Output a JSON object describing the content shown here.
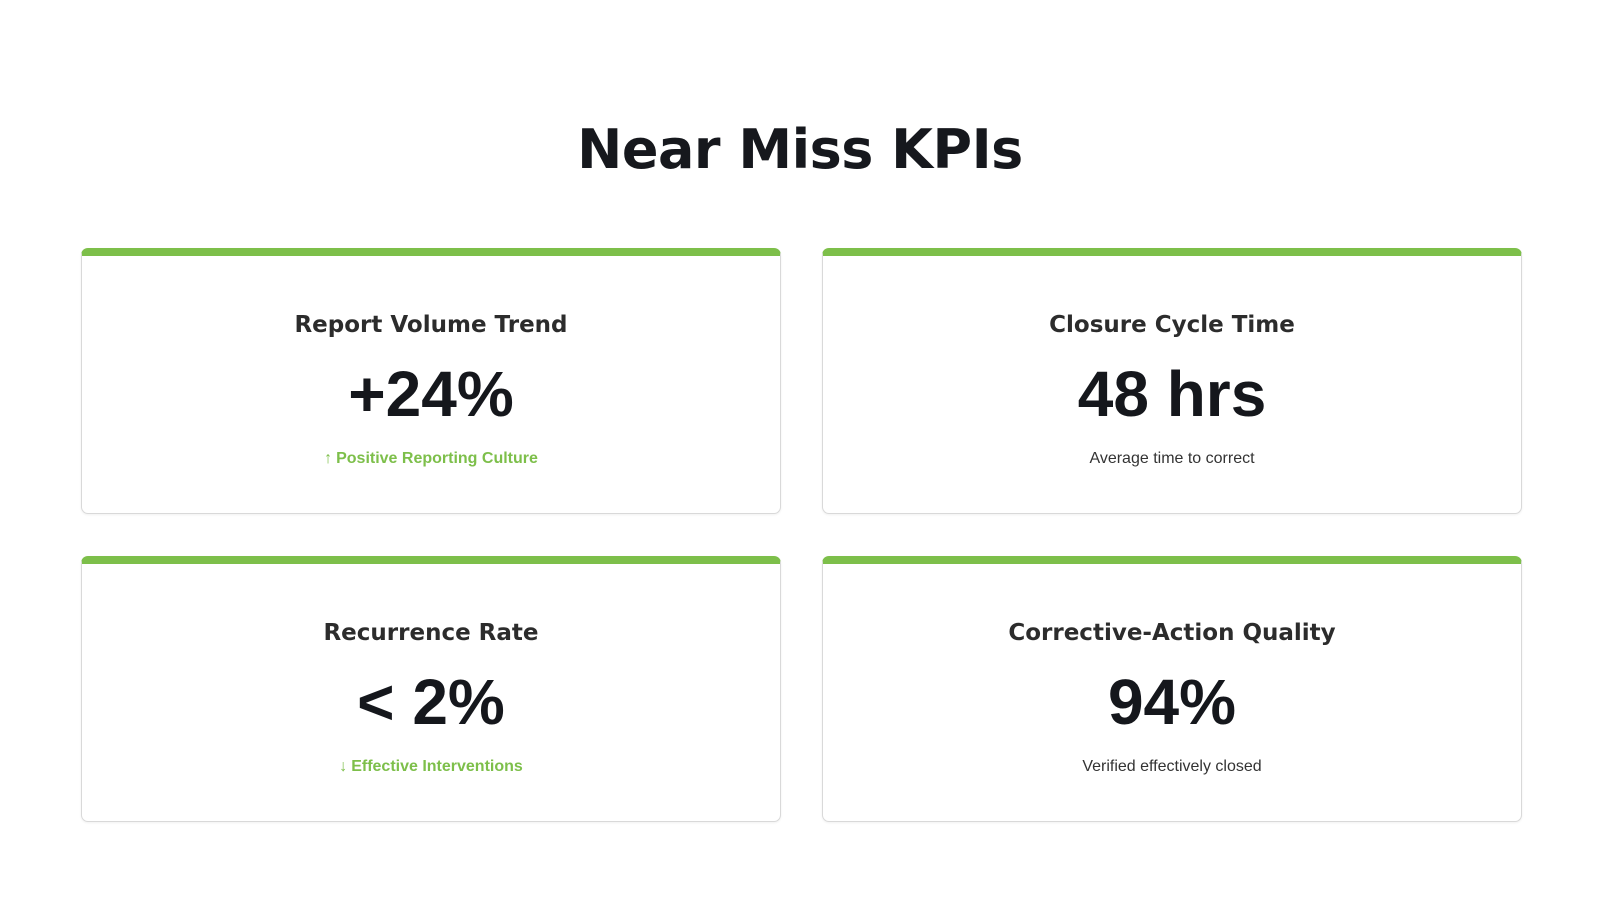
{
  "page": {
    "title": "Near Miss KPIs"
  },
  "colors": {
    "accent": "#7dbf4a",
    "text": "#16181d",
    "border": "#d9d9d9"
  },
  "kpis": [
    {
      "label": "Report Volume Trend",
      "value": "+24%",
      "note": "Positive Reporting Culture",
      "note_icon": "↑",
      "icon_name": "arrow-up-icon"
    },
    {
      "label": "Closure Cycle Time",
      "value": "48 hrs",
      "note": "Average time to correct"
    },
    {
      "label": "Recurrence Rate",
      "value": "< 2%",
      "note": "Effective Interventions",
      "note_icon": "↓",
      "icon_name": "arrow-down-icon"
    },
    {
      "label": "Corrective-Action Quality",
      "value": "94%",
      "note": "Verified effectively closed"
    }
  ]
}
